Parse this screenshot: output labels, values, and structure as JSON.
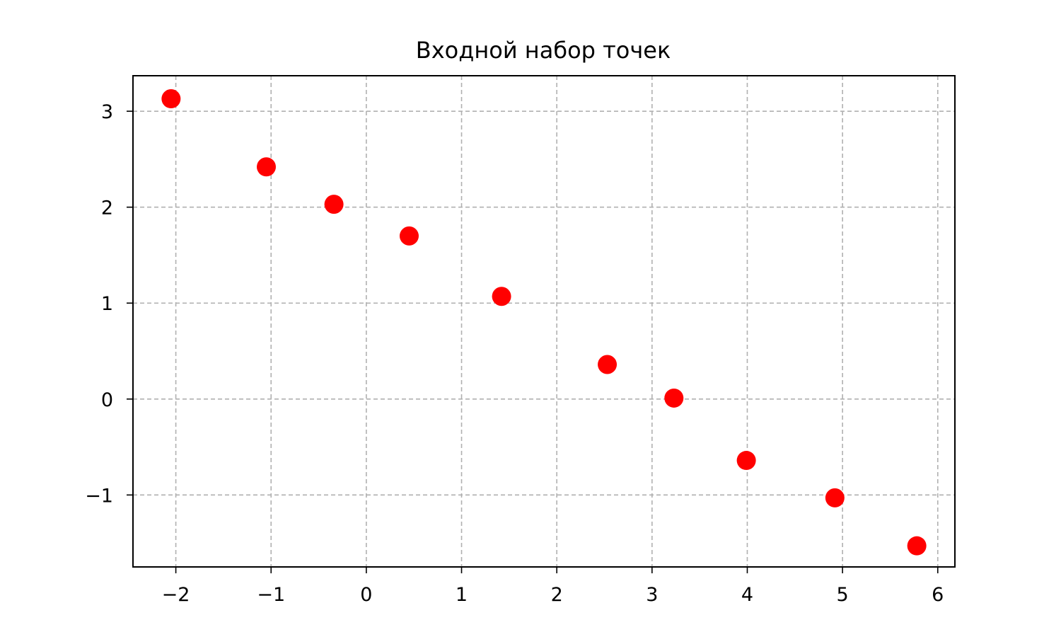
{
  "chart_data": {
    "type": "scatter",
    "title": "Входной набор точек",
    "xlabel": "",
    "ylabel": "",
    "xlim": [
      -2.45,
      6.18
    ],
    "ylim": [
      -1.75,
      3.37
    ],
    "grid": true,
    "x_ticks": [
      -2,
      -1,
      0,
      1,
      2,
      3,
      4,
      5,
      6
    ],
    "y_ticks": [
      -1,
      0,
      1,
      2,
      3
    ],
    "x_tick_labels": [
      "−2",
      "−1",
      "0",
      "1",
      "2",
      "3",
      "4",
      "5",
      "6"
    ],
    "y_tick_labels": [
      "−1",
      "0",
      "1",
      "2",
      "3"
    ],
    "colors": {
      "marker": "#ff0000",
      "grid": "#b0b0b0",
      "axes": "#000000"
    },
    "series": [
      {
        "x": [
          -2.05,
          -1.05,
          -0.34,
          0.45,
          1.42,
          2.53,
          3.23,
          3.99,
          4.92,
          5.78
        ],
        "y": [
          3.13,
          2.42,
          2.03,
          1.7,
          1.07,
          0.36,
          0.01,
          -0.64,
          -1.03,
          -1.53
        ]
      }
    ]
  }
}
